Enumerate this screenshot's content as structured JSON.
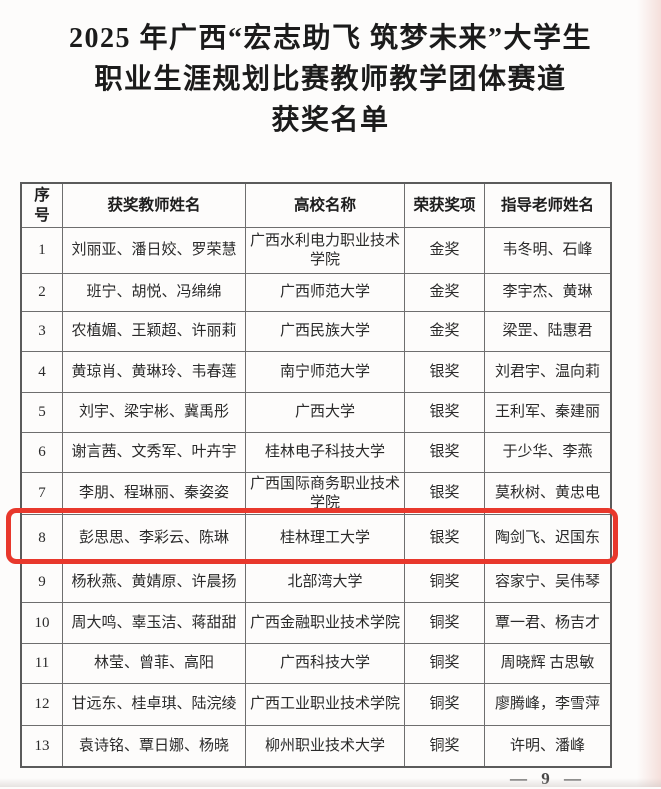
{
  "document": {
    "title_lines": [
      "2025 年广西“宏志助飞 筑梦未来”大学生",
      "职业生涯规划比赛教师教学团体赛道",
      "获奖名单"
    ],
    "page_number": "— 9 —"
  },
  "table": {
    "headers": [
      "序\n号",
      "获奖教师姓名",
      "高校名称",
      "荣获奖项",
      "指导老师姓名"
    ],
    "rows": [
      {
        "no": "1",
        "teachers": "刘丽亚、潘日姣、罗荣慧",
        "school": "广西水利电力职业技术学院",
        "award": "金奖",
        "advisors": "韦冬明、石峰"
      },
      {
        "no": "2",
        "teachers": "班宁、胡悦、冯绵绵",
        "school": "广西师范大学",
        "award": "金奖",
        "advisors": "李宇杰、黄琳"
      },
      {
        "no": "3",
        "teachers": "农植媚、王颖超、许丽莉",
        "school": "广西民族大学",
        "award": "金奖",
        "advisors": "梁罡、陆惠君"
      },
      {
        "no": "4",
        "teachers": "黄琼肖、黄琳玲、韦春莲",
        "school": "南宁师范大学",
        "award": "银奖",
        "advisors": "刘君宇、温向莉"
      },
      {
        "no": "5",
        "teachers": "刘宇、梁宇彬、冀禹彤",
        "school": "广西大学",
        "award": "银奖",
        "advisors": "王利军、秦建丽"
      },
      {
        "no": "6",
        "teachers": "谢言茜、文秀军、叶卉宇",
        "school": "桂林电子科技大学",
        "award": "银奖",
        "advisors": "于少华、李燕"
      },
      {
        "no": "7",
        "teachers": "李朋、程琳丽、秦姿姿",
        "school": "广西国际商务职业技术学院",
        "award": "银奖",
        "advisors": "莫秋树、黄忠电"
      },
      {
        "no": "8",
        "teachers": "彭思思、李彩云、陈琳",
        "school": "桂林理工大学",
        "award": "银奖",
        "advisors": "陶剑飞、迟国东"
      },
      {
        "no": "9",
        "teachers": "杨秋燕、黄婧原、许晨扬",
        "school": "北部湾大学",
        "award": "铜奖",
        "advisors": "容家宁、吴伟琴"
      },
      {
        "no": "10",
        "teachers": "周大鸣、辜玉洁、蒋甜甜",
        "school": "广西金融职业技术学院",
        "award": "铜奖",
        "advisors": "覃一君、杨吉才"
      },
      {
        "no": "11",
        "teachers": "林莹、曾菲、高阳",
        "school": "广西科技大学",
        "award": "铜奖",
        "advisors": "周晓辉 古思敏"
      },
      {
        "no": "12",
        "teachers": "甘远东、桂卓琪、陆浣绫",
        "school": "广西工业职业技术学院",
        "award": "铜奖",
        "advisors": "廖腾峰，李雪萍"
      },
      {
        "no": "13",
        "teachers": "袁诗铭、覃日娜、杨晓",
        "school": "柳州职业技术大学",
        "award": "铜奖",
        "advisors": "许明、潘峰"
      }
    ],
    "highlight": {
      "row_number": "8",
      "color": "#e8382c"
    }
  }
}
